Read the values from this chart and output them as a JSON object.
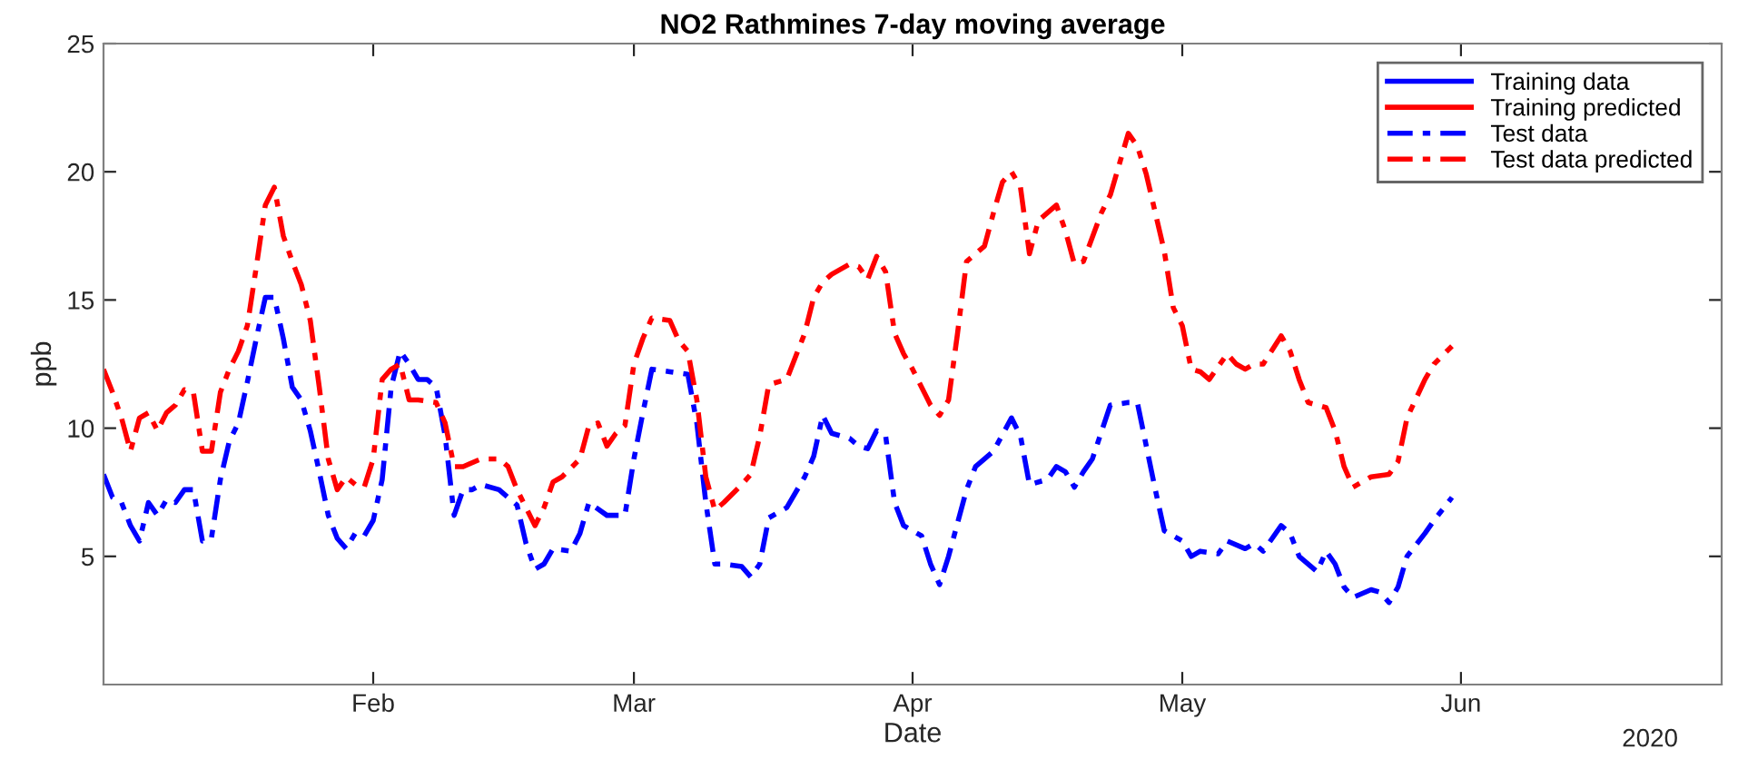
{
  "chart_data": {
    "type": "line",
    "title": "NO2 Rathmines 7-day moving average",
    "xlabel": "Date",
    "ylabel": "ppb",
    "annotations": [
      "2020"
    ],
    "xlim": [
      "2020-01-02",
      "2020-06-30"
    ],
    "xticks": [
      {
        "value": "2020-02-01",
        "label": "Feb"
      },
      {
        "value": "2020-03-01",
        "label": "Mar"
      },
      {
        "value": "2020-04-01",
        "label": "Apr"
      },
      {
        "value": "2020-05-01",
        "label": "May"
      },
      {
        "value": "2020-06-01",
        "label": "Jun"
      }
    ],
    "ylim": [
      0,
      25
    ],
    "yticks": [
      5,
      10,
      15,
      20,
      25
    ],
    "grid": false,
    "legend": "top right",
    "marker": "none",
    "series": [
      {
        "name": "Training data",
        "color": "#0000ff",
        "line_style": "solid"
      },
      {
        "name": "Training predicted",
        "color": "#ff0000",
        "line_style": "solid"
      },
      {
        "name": "Test data",
        "color": "#0000ff",
        "line_style": "dashed",
        "x": [
          "2020-01-02",
          "2020-01-03",
          "2020-01-04",
          "2020-01-05",
          "2020-01-06",
          "2020-01-07",
          "2020-01-08",
          "2020-01-09",
          "2020-01-10",
          "2020-01-11",
          "2020-01-12",
          "2020-01-13",
          "2020-01-14",
          "2020-01-15",
          "2020-01-16",
          "2020-01-17",
          "2020-01-18",
          "2020-01-19",
          "2020-01-20",
          "2020-01-21",
          "2020-01-22",
          "2020-01-23",
          "2020-01-24",
          "2020-01-25",
          "2020-01-26",
          "2020-01-27",
          "2020-01-28",
          "2020-01-29",
          "2020-01-30",
          "2020-01-31",
          "2020-02-01",
          "2020-02-02",
          "2020-02-03",
          "2020-02-04",
          "2020-02-05",
          "2020-02-06",
          "2020-02-07",
          "2020-02-08",
          "2020-02-09",
          "2020-02-10",
          "2020-02-11",
          "2020-02-12",
          "2020-02-13",
          "2020-02-15",
          "2020-02-16",
          "2020-02-17",
          "2020-02-18",
          "2020-02-19",
          "2020-02-20",
          "2020-02-21",
          "2020-02-23",
          "2020-02-24",
          "2020-02-25",
          "2020-02-27",
          "2020-02-29",
          "2020-03-01",
          "2020-03-02",
          "2020-03-03",
          "2020-03-05",
          "2020-03-07",
          "2020-03-08",
          "2020-03-09",
          "2020-03-10",
          "2020-03-11",
          "2020-03-13",
          "2020-03-14",
          "2020-03-15",
          "2020-03-16",
          "2020-03-18",
          "2020-03-20",
          "2020-03-21",
          "2020-03-22",
          "2020-03-23",
          "2020-03-25",
          "2020-03-26",
          "2020-03-27",
          "2020-03-28",
          "2020-03-29",
          "2020-03-30",
          "2020-03-31",
          "2020-04-02",
          "2020-04-03",
          "2020-04-04",
          "2020-04-05",
          "2020-04-07",
          "2020-04-08",
          "2020-04-10",
          "2020-04-12",
          "2020-04-13",
          "2020-04-14",
          "2020-04-16",
          "2020-04-17",
          "2020-04-18",
          "2020-04-19",
          "2020-04-20",
          "2020-04-21",
          "2020-04-23",
          "2020-04-25",
          "2020-04-26",
          "2020-04-27",
          "2020-04-28",
          "2020-04-29",
          "2020-05-01",
          "2020-05-02",
          "2020-05-03",
          "2020-05-05",
          "2020-05-06",
          "2020-05-08",
          "2020-05-09",
          "2020-05-10",
          "2020-05-12",
          "2020-05-13",
          "2020-05-14",
          "2020-05-16",
          "2020-05-17",
          "2020-05-18",
          "2020-05-19",
          "2020-05-20",
          "2020-05-22",
          "2020-05-23",
          "2020-05-24",
          "2020-05-25",
          "2020-05-26",
          "2020-05-28",
          "2020-05-29",
          "2020-05-31"
        ],
        "values": [
          8.2,
          7.3,
          7.1,
          6.2,
          5.6,
          7.1,
          6.6,
          7.2,
          7.1,
          7.6,
          7.6,
          5.6,
          5.7,
          8.0,
          9.5,
          10.2,
          11.8,
          13.5,
          15.1,
          15.1,
          13.5,
          11.6,
          11.1,
          9.9,
          8.3,
          6.6,
          5.7,
          5.3,
          5.9,
          5.8,
          6.4,
          8.0,
          11.6,
          13.0,
          12.5,
          11.9,
          11.9,
          11.6,
          9.7,
          6.6,
          7.6,
          7.6,
          7.8,
          7.6,
          7.3,
          7.0,
          5.5,
          4.5,
          4.7,
          5.3,
          5.2,
          5.9,
          7.1,
          6.6,
          6.6,
          8.8,
          10.6,
          12.3,
          12.2,
          12.1,
          10.2,
          7.1,
          4.7,
          4.7,
          4.6,
          4.2,
          4.7,
          6.5,
          6.9,
          8.1,
          8.9,
          10.5,
          9.8,
          9.6,
          9.3,
          9.2,
          9.9,
          9.7,
          7.1,
          6.2,
          5.8,
          4.7,
          3.9,
          5.0,
          7.6,
          8.5,
          9.1,
          10.4,
          9.7,
          7.8,
          8.0,
          8.5,
          8.3,
          7.7,
          8.3,
          8.8,
          10.9,
          11.0,
          11.0,
          9.3,
          7.6,
          6.0,
          5.6,
          5.0,
          5.2,
          5.1,
          5.6,
          5.3,
          5.5,
          5.2,
          6.2,
          5.9,
          5.0,
          4.4,
          5.2,
          4.7,
          3.8,
          3.4,
          3.7,
          3.6,
          3.2,
          3.8,
          5.0,
          5.9,
          6.4,
          7.3
        ]
      },
      {
        "name": "Test data predicted",
        "color": "#ff0000",
        "line_style": "dashed",
        "x": [
          "2020-01-02",
          "2020-01-03",
          "2020-01-04",
          "2020-01-05",
          "2020-01-06",
          "2020-01-07",
          "2020-01-08",
          "2020-01-09",
          "2020-01-10",
          "2020-01-11",
          "2020-01-12",
          "2020-01-13",
          "2020-01-14",
          "2020-01-15",
          "2020-01-16",
          "2020-01-17",
          "2020-01-18",
          "2020-01-19",
          "2020-01-20",
          "2020-01-21",
          "2020-01-22",
          "2020-01-23",
          "2020-01-24",
          "2020-01-25",
          "2020-01-26",
          "2020-01-27",
          "2020-01-28",
          "2020-01-29",
          "2020-01-30",
          "2020-01-31",
          "2020-02-01",
          "2020-02-02",
          "2020-02-03",
          "2020-02-04",
          "2020-02-05",
          "2020-02-06",
          "2020-02-08",
          "2020-02-09",
          "2020-02-10",
          "2020-02-11",
          "2020-02-13",
          "2020-02-15",
          "2020-02-16",
          "2020-02-17",
          "2020-02-19",
          "2020-02-20",
          "2020-02-21",
          "2020-02-22",
          "2020-02-24",
          "2020-02-25",
          "2020-02-26",
          "2020-02-27",
          "2020-02-28",
          "2020-02-29",
          "2020-03-01",
          "2020-03-02",
          "2020-03-03",
          "2020-03-05",
          "2020-03-06",
          "2020-03-07",
          "2020-03-08",
          "2020-03-09",
          "2020-03-10",
          "2020-03-11",
          "2020-03-13",
          "2020-03-14",
          "2020-03-15",
          "2020-03-16",
          "2020-03-18",
          "2020-03-20",
          "2020-03-21",
          "2020-03-22",
          "2020-03-23",
          "2020-03-25",
          "2020-03-26",
          "2020-03-27",
          "2020-03-28",
          "2020-03-29",
          "2020-03-30",
          "2020-03-31",
          "2020-04-01",
          "2020-04-03",
          "2020-04-04",
          "2020-04-05",
          "2020-04-06",
          "2020-04-07",
          "2020-04-09",
          "2020-04-10",
          "2020-04-11",
          "2020-04-12",
          "2020-04-13",
          "2020-04-14",
          "2020-04-15",
          "2020-04-17",
          "2020-04-18",
          "2020-04-19",
          "2020-04-20",
          "2020-04-22",
          "2020-04-23",
          "2020-04-24",
          "2020-04-25",
          "2020-04-26",
          "2020-04-27",
          "2020-04-29",
          "2020-04-30",
          "2020-05-01",
          "2020-05-02",
          "2020-05-03",
          "2020-05-04",
          "2020-05-06",
          "2020-05-07",
          "2020-05-08",
          "2020-05-09",
          "2020-05-10",
          "2020-05-12",
          "2020-05-13",
          "2020-05-14",
          "2020-05-15",
          "2020-05-17",
          "2020-05-18",
          "2020-05-19",
          "2020-05-20",
          "2020-05-22",
          "2020-05-24",
          "2020-05-25",
          "2020-05-26",
          "2020-05-28",
          "2020-05-29",
          "2020-05-31"
        ],
        "values": [
          12.3,
          11.4,
          10.4,
          9.1,
          10.4,
          10.6,
          9.9,
          10.6,
          10.9,
          11.5,
          11.4,
          9.1,
          9.1,
          11.4,
          12.3,
          13.0,
          14.0,
          16.3,
          18.7,
          19.4,
          17.5,
          16.5,
          15.6,
          14.2,
          11.6,
          8.8,
          7.6,
          8.1,
          7.8,
          7.7,
          8.8,
          11.9,
          12.3,
          12.5,
          11.1,
          11.1,
          11.0,
          10.2,
          8.5,
          8.5,
          8.8,
          8.8,
          8.5,
          7.6,
          6.2,
          6.9,
          7.9,
          8.1,
          8.8,
          10.1,
          10.2,
          9.3,
          9.8,
          10.1,
          12.5,
          13.5,
          14.3,
          14.2,
          13.4,
          13.0,
          11.1,
          8.1,
          6.8,
          7.1,
          7.8,
          8.2,
          9.7,
          11.7,
          11.9,
          13.7,
          15.1,
          15.7,
          16.0,
          16.4,
          16.3,
          15.8,
          16.7,
          16.1,
          13.7,
          12.9,
          12.3,
          10.9,
          10.5,
          11.1,
          13.7,
          16.5,
          17.1,
          18.4,
          19.6,
          20.0,
          19.4,
          16.8,
          18.1,
          18.7,
          17.7,
          16.4,
          16.5,
          18.4,
          19.1,
          20.3,
          21.5,
          21.0,
          19.9,
          16.9,
          14.7,
          14.0,
          12.3,
          12.2,
          11.9,
          12.9,
          12.5,
          12.3,
          12.5,
          12.5,
          13.6,
          13.0,
          11.9,
          11.0,
          10.8,
          9.9,
          8.5,
          7.7,
          8.1,
          8.2,
          8.7,
          10.4,
          11.9,
          12.5,
          13.2
        ]
      }
    ]
  }
}
